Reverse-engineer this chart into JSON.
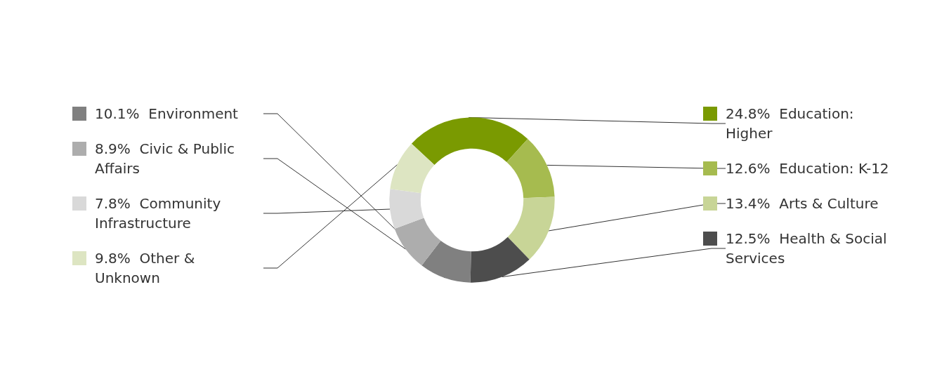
{
  "chart_data": {
    "type": "donut",
    "categories": [
      "Education: Higher",
      "Education: K-12",
      "Arts & Culture",
      "Health & Social Services",
      "Environment",
      "Civic & Public Affairs",
      "Community Infrastructure",
      "Other & Unknown"
    ],
    "values": [
      24.8,
      12.6,
      13.4,
      12.5,
      10.1,
      8.9,
      7.8,
      9.8
    ],
    "value_labels": [
      "24.8%",
      "12.6%",
      "13.4%",
      "12.5%",
      "10.1%",
      "8.9%",
      "7.8%",
      "9.8%"
    ],
    "colors": [
      "#7a9a01",
      "#a6bb4f",
      "#c8d597",
      "#4d4d4d",
      "#808080",
      "#adadad",
      "#d9d9d9",
      "#dde5c2"
    ],
    "legend": "left"
  }
}
